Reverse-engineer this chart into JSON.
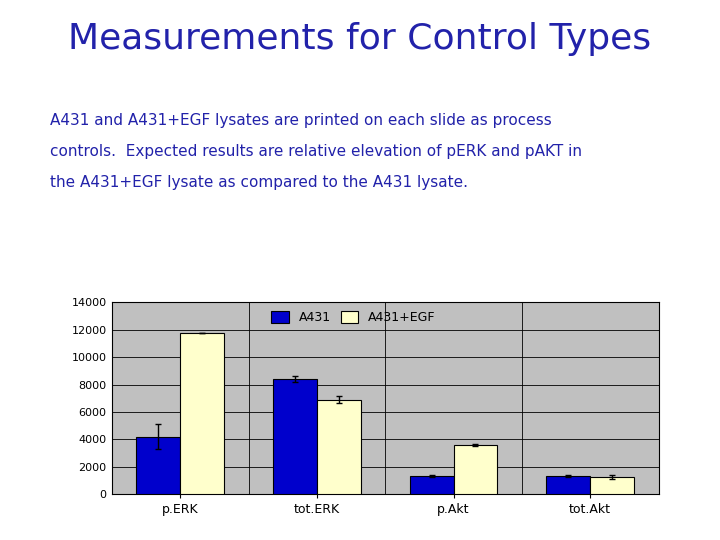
{
  "title": "Measurements for Control Types",
  "subtitle_lines": [
    "A431 and A431+EGF lysates are printed on each slide as process",
    "controls.  Expected results are relative elevation of pERK and pAKT in",
    "the A431+EGF lysate as compared to the A431 lysate."
  ],
  "categories": [
    "p.ERK",
    "tot.ERK",
    "p.Akt",
    "tot.Akt"
  ],
  "a431_values": [
    4200,
    8400,
    1300,
    1350
  ],
  "a431egf_values": [
    11800,
    6900,
    3600,
    1250
  ],
  "a431_errors": [
    900,
    200,
    60,
    80
  ],
  "a431egf_errors": [
    0,
    250,
    90,
    120
  ],
  "bar_color_a431": "#0000CC",
  "bar_color_egf": "#FFFFCC",
  "bar_edgecolor": "#000000",
  "ylim": [
    0,
    14000
  ],
  "yticks": [
    0,
    2000,
    4000,
    6000,
    8000,
    10000,
    12000,
    14000
  ],
  "legend_a431": "A431",
  "legend_egf": "A431+EGF",
  "title_color": "#2222AA",
  "subtitle_color": "#2222AA",
  "title_fontsize": 26,
  "subtitle_fontsize": 11,
  "plot_area_bg": "#C0C0C0",
  "figure_bg": "#FFFFFF"
}
